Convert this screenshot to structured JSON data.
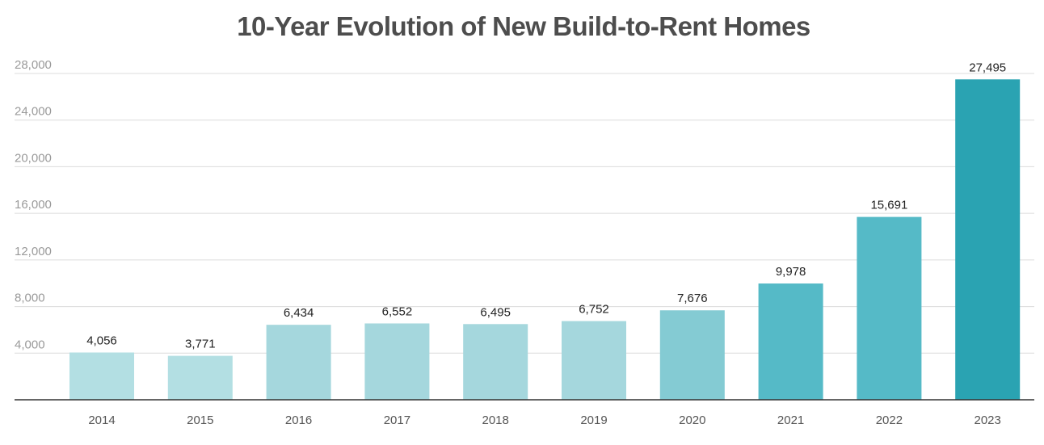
{
  "chart_data": {
    "type": "bar",
    "title": "10-Year Evolution of New Build-to-Rent Homes",
    "xlabel": "",
    "ylabel": "",
    "categories": [
      "2014",
      "2015",
      "2016",
      "2017",
      "2018",
      "2019",
      "2020",
      "2021",
      "2022",
      "2023"
    ],
    "values": [
      4056,
      3771,
      6434,
      6552,
      6495,
      6752,
      7676,
      9978,
      15691,
      27495
    ],
    "value_labels": [
      "4,056",
      "3,771",
      "6,434",
      "6,552",
      "6,495",
      "6,752",
      "7,676",
      "9,978",
      "15,691",
      "27,495"
    ],
    "ylim": [
      0,
      28000
    ],
    "y_ticks": [
      4000,
      8000,
      12000,
      16000,
      20000,
      24000,
      28000
    ],
    "y_tick_labels": [
      "4,000",
      "8,000",
      "12,000",
      "16,000",
      "20,000",
      "24,000",
      "28,000"
    ],
    "grid": true,
    "bar_colors": [
      "#b3dfe3",
      "#b3dfe3",
      "#a5d7dd",
      "#a5d7dd",
      "#a5d7dd",
      "#a5d7dd",
      "#84cbd3",
      "#55bac7",
      "#55bac7",
      "#2aa3b2"
    ]
  }
}
